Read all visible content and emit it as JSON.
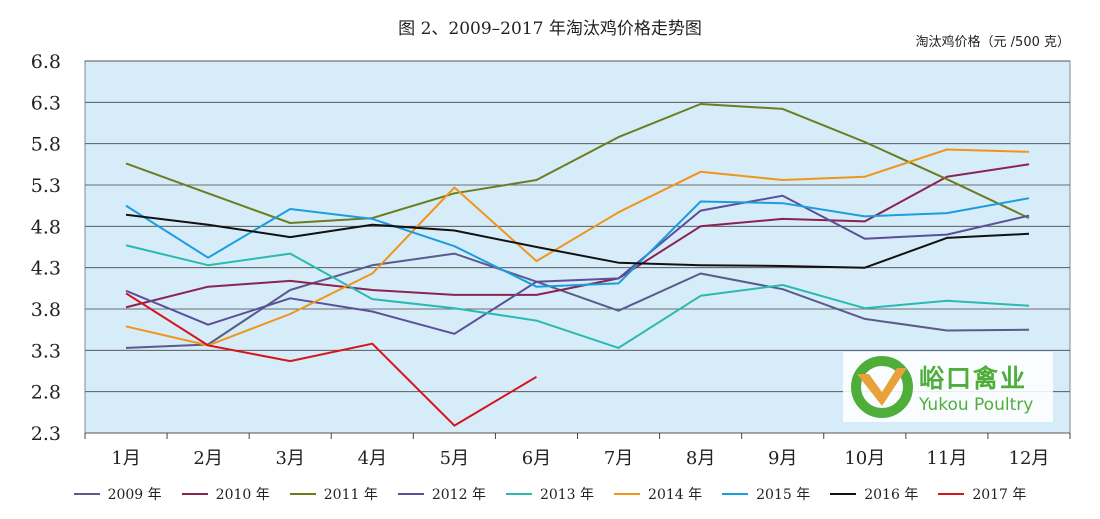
{
  "title": "图 2、2009–2017 年淘汰鸡价格走势图",
  "unit_label": "淘汰鸡价格（元 /500 克）",
  "watermark": {
    "cn": "峪口禽业",
    "en": "Yukou Poultry"
  },
  "chart_data": {
    "type": "line",
    "title": "图 2、2009–2017 年淘汰鸡价格走势图",
    "ylabel": "淘汰鸡价格（元 /500 克）",
    "xlabel": "",
    "ylim": [
      2.3,
      6.8
    ],
    "yticks": [
      "2.3",
      "2.8",
      "3.3",
      "3.8",
      "4.3",
      "4.8",
      "5.3",
      "5.8",
      "6.3",
      "6.8"
    ],
    "grid": true,
    "legend_position": "bottom",
    "background": "#d6ecf8",
    "categories": [
      "1月",
      "2月",
      "3月",
      "4月",
      "5月",
      "6月",
      "7月",
      "8月",
      "9月",
      "10月",
      "11月",
      "12月"
    ],
    "series": [
      {
        "name": "2009 年",
        "color": "#5a5a8c",
        "values": [
          3.33,
          3.37,
          4.03,
          4.33,
          4.47,
          4.13,
          3.78,
          4.23,
          4.04,
          3.68,
          3.54,
          3.55
        ]
      },
      {
        "name": "2010 年",
        "color": "#8b2252",
        "values": [
          3.82,
          4.07,
          4.14,
          4.03,
          3.97,
          3.97,
          4.17,
          4.8,
          4.89,
          4.86,
          5.4,
          5.55
        ]
      },
      {
        "name": "2011 年",
        "color": "#6b7d1f",
        "values": [
          5.56,
          5.2,
          4.84,
          4.9,
          5.2,
          5.36,
          5.88,
          6.28,
          6.22,
          5.82,
          5.37,
          4.9
        ]
      },
      {
        "name": "2012 年",
        "color": "#5b4f99",
        "values": [
          4.02,
          3.61,
          3.93,
          3.77,
          3.5,
          4.13,
          4.17,
          4.99,
          5.17,
          4.65,
          4.7,
          4.93
        ]
      },
      {
        "name": "2013 年",
        "color": "#2bbab0",
        "values": [
          4.57,
          4.33,
          4.47,
          3.92,
          3.81,
          3.66,
          3.33,
          3.96,
          4.09,
          3.81,
          3.9,
          3.84
        ]
      },
      {
        "name": "2014 年",
        "color": "#f0951a",
        "values": [
          3.59,
          3.36,
          3.74,
          4.23,
          5.27,
          4.38,
          4.97,
          5.46,
          5.36,
          5.4,
          5.73,
          5.7
        ]
      },
      {
        "name": "2015 年",
        "color": "#1b9de0",
        "values": [
          5.05,
          4.42,
          5.01,
          4.89,
          4.56,
          4.07,
          4.11,
          5.1,
          5.08,
          4.92,
          4.96,
          5.14
        ]
      },
      {
        "name": "2016 年",
        "color": "#111111",
        "values": [
          4.94,
          4.82,
          4.67,
          4.82,
          4.75,
          4.55,
          4.36,
          4.33,
          4.32,
          4.3,
          4.66,
          4.71
        ]
      },
      {
        "name": "2017 年",
        "color": "#d6141c",
        "values": [
          3.99,
          3.36,
          3.17,
          3.38,
          2.39,
          2.98,
          null,
          null,
          null,
          null,
          null,
          null
        ]
      }
    ]
  }
}
